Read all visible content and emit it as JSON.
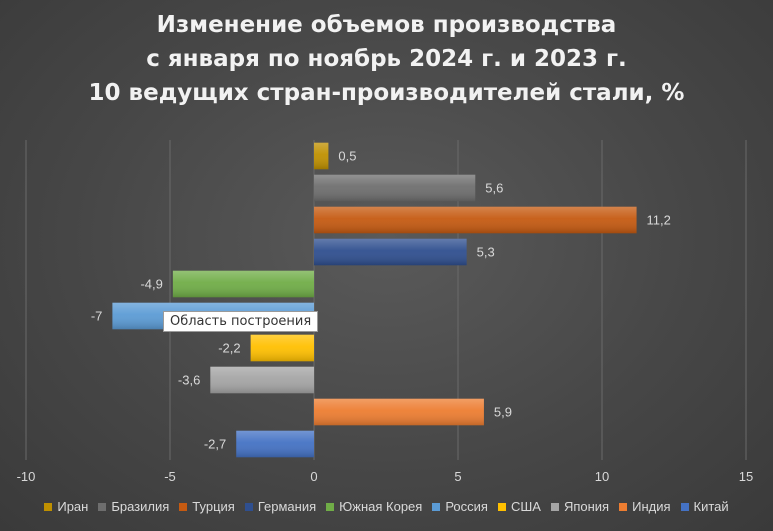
{
  "tooltip": "Область построения",
  "chart_data": {
    "type": "bar",
    "orientation": "horizontal",
    "title_lines": [
      "Изменение объемов производства",
      "с января по ноябрь 2024 г. и 2023 г.",
      "10 ведущих стран-производителей стали, %"
    ],
    "xlim": [
      -10,
      15
    ],
    "xticks": [
      -10,
      -5,
      0,
      5,
      10,
      15
    ],
    "grid": true,
    "legend_position": "bottom",
    "series": [
      {
        "name": "Иран",
        "value": 0.5,
        "label": "0,5",
        "color": "#bf9000"
      },
      {
        "name": "Бразилия",
        "value": 5.6,
        "label": "5,6",
        "color": "#6e6e6e"
      },
      {
        "name": "Турция",
        "value": 11.2,
        "label": "11,2",
        "color": "#c55a11"
      },
      {
        "name": "Германия",
        "value": 5.3,
        "label": "5,3",
        "color": "#2f4f8f"
      },
      {
        "name": "Южная Корея",
        "value": -4.9,
        "label": "-4,9",
        "color": "#70ad47"
      },
      {
        "name": "Россия",
        "value": -7,
        "label": "-7",
        "color": "#5b9bd5"
      },
      {
        "name": "США",
        "value": -2.2,
        "label": "-2,2",
        "color": "#ffc000"
      },
      {
        "name": "Япония",
        "value": -3.6,
        "label": "-3,6",
        "color": "#a5a5a5"
      },
      {
        "name": "Индия",
        "value": 5.9,
        "label": "5,9",
        "color": "#ed7d31"
      },
      {
        "name": "Китай",
        "value": -2.7,
        "label": "-2,7",
        "color": "#4472c4"
      }
    ]
  }
}
